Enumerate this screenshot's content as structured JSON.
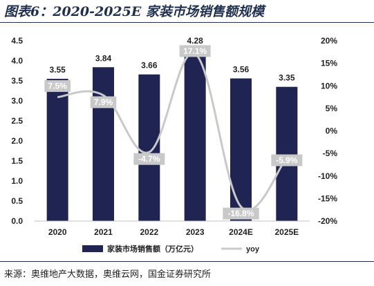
{
  "header": {
    "title": "图表6：2020-2025E 家装市场销售额规模"
  },
  "footer": {
    "source": "来源：奥维地产大数据，奥维云网，国金证券研究所"
  },
  "colors": {
    "bar": "#1f2452",
    "line": "#c9c9c9",
    "yoy_label_bg": "#c9c9c9",
    "axis_text": "#222222"
  },
  "chart_data": {
    "type": "bar",
    "categories": [
      "2020",
      "2021",
      "2022",
      "2023",
      "2024E",
      "2025E"
    ],
    "series": [
      {
        "name": "家装市场销售额（万亿元）",
        "type": "bar",
        "axis": "left",
        "values": [
          3.55,
          3.84,
          3.66,
          4.28,
          3.56,
          3.35
        ],
        "labels": [
          "3.55",
          "3.84",
          "3.66",
          "4.28",
          "3.56",
          "3.35"
        ]
      },
      {
        "name": "yoy",
        "type": "line",
        "axis": "right",
        "values": [
          7.5,
          7.9,
          -4.7,
          17.1,
          -16.8,
          -5.9
        ],
        "labels": [
          "7.5%",
          "7.9%",
          "-4.7%",
          "17.1%",
          "-16.8%",
          "-5.9%"
        ]
      }
    ],
    "y_left": {
      "ylim": [
        0,
        4.5
      ],
      "ticks": [
        "0.0",
        "0.5",
        "1.0",
        "1.5",
        "2.0",
        "2.5",
        "3.0",
        "3.5",
        "4.0",
        "4.5"
      ]
    },
    "y_right": {
      "ylim": [
        -20,
        20
      ],
      "ticks": [
        "-20%",
        "-15%",
        "-10%",
        "-5%",
        "0%",
        "5%",
        "10%",
        "15%",
        "20%"
      ]
    },
    "grid": false,
    "legend_position": "bottom"
  }
}
